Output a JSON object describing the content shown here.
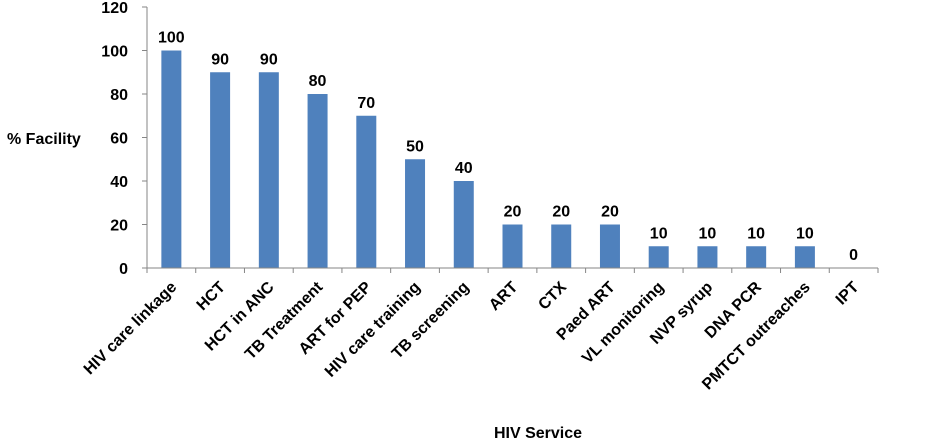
{
  "chart_data": {
    "type": "bar",
    "title": "",
    "xlabel": "HIV Service",
    "ylabel": "% Facility",
    "ylim": [
      0,
      120
    ],
    "yticks": [
      0,
      20,
      40,
      60,
      80,
      100,
      120
    ],
    "grid": false,
    "legend": "none",
    "bar_color": "#4F81BD",
    "categories": [
      "HIV care linkage",
      "HCT",
      "HCT in ANC",
      "TB Treatment",
      "ART for PEP",
      "HIV care training",
      "TB screening",
      "ART",
      "CTX",
      "Paed ART",
      "VL monitoring",
      "NVP syrup",
      "DNA PCR",
      "PMTCT outreaches",
      "IPT"
    ],
    "values": [
      100,
      90,
      90,
      80,
      70,
      50,
      40,
      20,
      20,
      20,
      10,
      10,
      10,
      10,
      0
    ],
    "data_labels": [
      "100",
      "90",
      "90",
      "80",
      "70",
      "50",
      "40",
      "20",
      "20",
      "20",
      "10",
      "10",
      "10",
      "10",
      "0"
    ]
  }
}
